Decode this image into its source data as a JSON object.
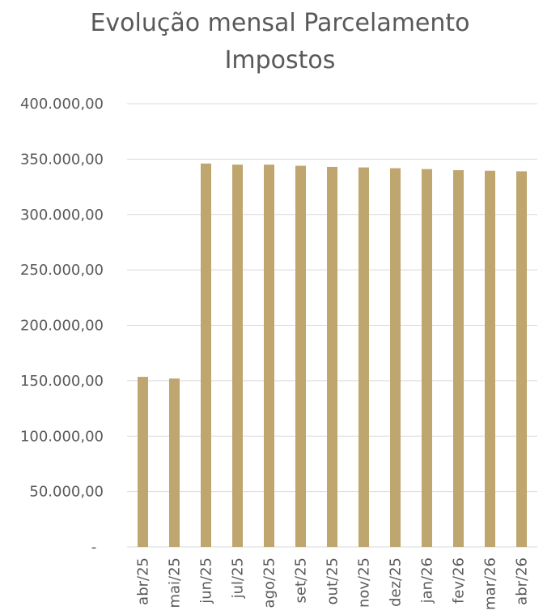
{
  "chart_data": {
    "type": "bar",
    "title_lines": [
      "Evolução mensal Parcelamento",
      "Impostos"
    ],
    "xlabel": "",
    "ylabel": "",
    "ylim": [
      0,
      400000
    ],
    "y_ticks": [
      {
        "value": 0,
        "label": "-"
      },
      {
        "value": 50000,
        "label": "50.000,00"
      },
      {
        "value": 100000,
        "label": "100.000,00"
      },
      {
        "value": 150000,
        "label": "150.000,00"
      },
      {
        "value": 200000,
        "label": "200.000,00"
      },
      {
        "value": 250000,
        "label": "250.000,00"
      },
      {
        "value": 300000,
        "label": "300.000,00"
      },
      {
        "value": 350000,
        "label": "350.000,00"
      },
      {
        "value": 400000,
        "label": "400.000,00"
      }
    ],
    "categories": [
      "abr/25",
      "mai/25",
      "jun/25",
      "jul/25",
      "ago/25",
      "set/25",
      "out/25",
      "nov/25",
      "dez/25",
      "jan/26",
      "fev/26",
      "mar/26",
      "abr/26"
    ],
    "values": [
      153500,
      152000,
      346000,
      345000,
      345000,
      344000,
      343000,
      342500,
      341800,
      341000,
      340000,
      339500,
      339000
    ],
    "bar_color": "#BFA56E",
    "grid": true,
    "gridline_color": "#D9D9D9"
  }
}
